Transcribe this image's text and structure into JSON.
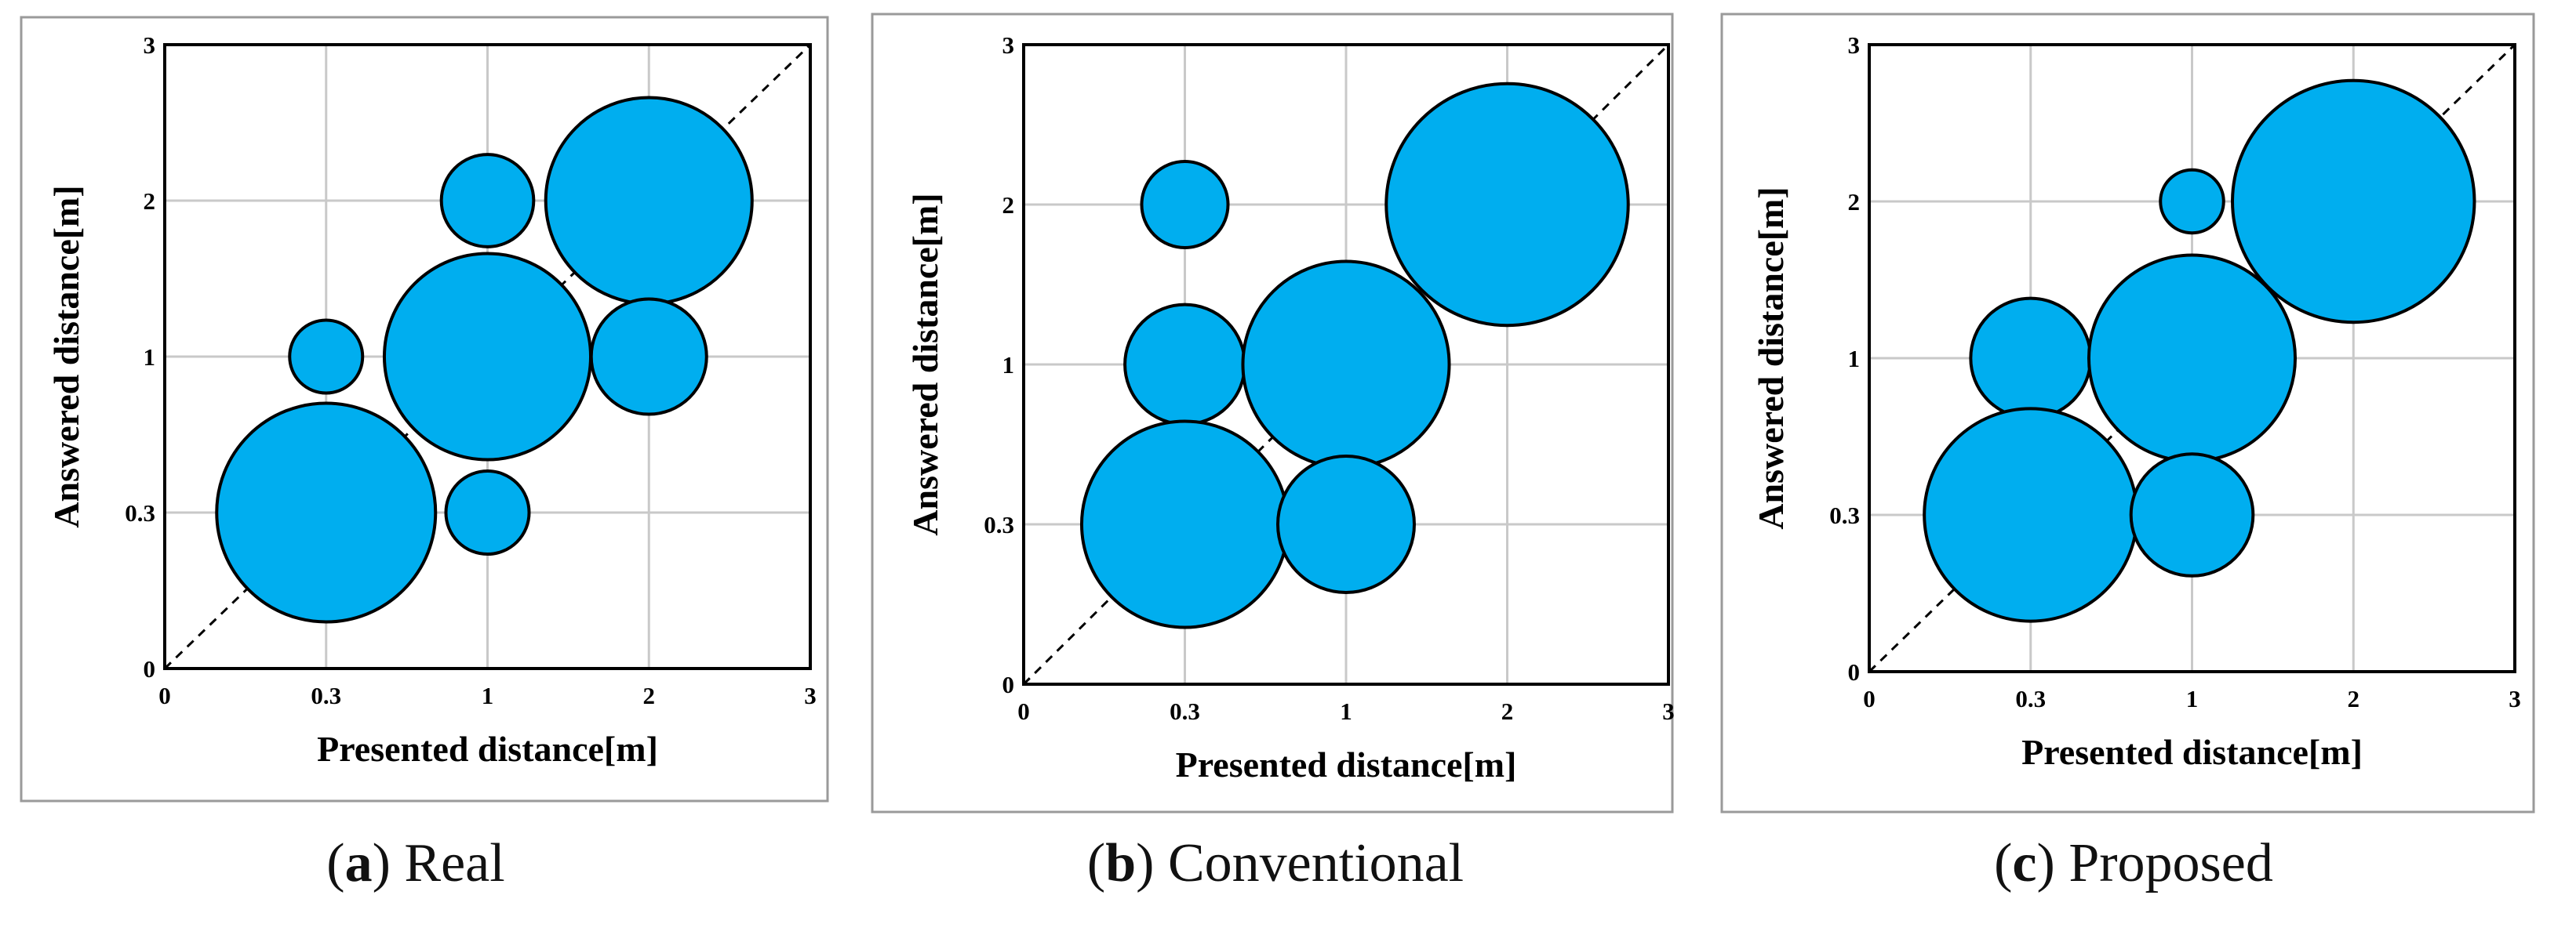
{
  "chart_data": [
    {
      "type": "scatter",
      "subtype": "bubble",
      "caption_letter": "a",
      "caption_text": "Real",
      "xlabel": "Presented distance[m]",
      "ylabel": "Answered distance[m]",
      "categories": [
        "0",
        "0.3",
        "1",
        "2",
        "3"
      ],
      "xlim": [
        0,
        3
      ],
      "ylim": [
        0,
        3
      ],
      "diagonal": true,
      "bubbles": [
        {
          "x": "0.3",
          "y": "0.3",
          "size": 9
        },
        {
          "x": "0.3",
          "y": "1",
          "size": 1
        },
        {
          "x": "1",
          "y": "1",
          "size": 8
        },
        {
          "x": "1",
          "y": "2",
          "size": 1.6
        },
        {
          "x": "1",
          "y": "0.3",
          "size": 1.3
        },
        {
          "x": "2",
          "y": "2",
          "size": 8
        },
        {
          "x": "2",
          "y": "1",
          "size": 2.5
        }
      ]
    },
    {
      "type": "scatter",
      "subtype": "bubble",
      "caption_letter": "b",
      "caption_text": "Conventional",
      "xlabel": "Presented distance[m]",
      "ylabel": "Answered distance[m]",
      "categories": [
        "0",
        "0.3",
        "1",
        "2",
        "3"
      ],
      "xlim": [
        0,
        3
      ],
      "ylim": [
        0,
        3
      ],
      "diagonal": true,
      "bubbles": [
        {
          "x": "0.3",
          "y": "2",
          "size": 1.4
        },
        {
          "x": "0.3",
          "y": "1",
          "size": 2.7
        },
        {
          "x": "0.3",
          "y": "0.3",
          "size": 8
        },
        {
          "x": "1",
          "y": "1",
          "size": 8
        },
        {
          "x": "1",
          "y": "0.3",
          "size": 3.5
        },
        {
          "x": "2",
          "y": "2",
          "size": 11
        }
      ]
    },
    {
      "type": "scatter",
      "subtype": "bubble",
      "caption_letter": "c",
      "caption_text": "Proposed",
      "xlabel": "Presented distance[m]",
      "ylabel": "Answered distance[m]",
      "categories": [
        "0",
        "0.3",
        "1",
        "2",
        "3"
      ],
      "xlim": [
        0,
        3
      ],
      "ylim": [
        0,
        3
      ],
      "diagonal": true,
      "bubbles": [
        {
          "x": "0.3",
          "y": "1",
          "size": 2.7
        },
        {
          "x": "0.3",
          "y": "0.3",
          "size": 8.5
        },
        {
          "x": "1",
          "y": "2",
          "size": 0.75
        },
        {
          "x": "1",
          "y": "1",
          "size": 8
        },
        {
          "x": "1",
          "y": "0.3",
          "size": 2.8
        },
        {
          "x": "2",
          "y": "2",
          "size": 11
        }
      ]
    }
  ],
  "colors": {
    "bubble_fill": "#00aeef",
    "bubble_stroke": "#000000",
    "grid": "#c9c9c9"
  }
}
